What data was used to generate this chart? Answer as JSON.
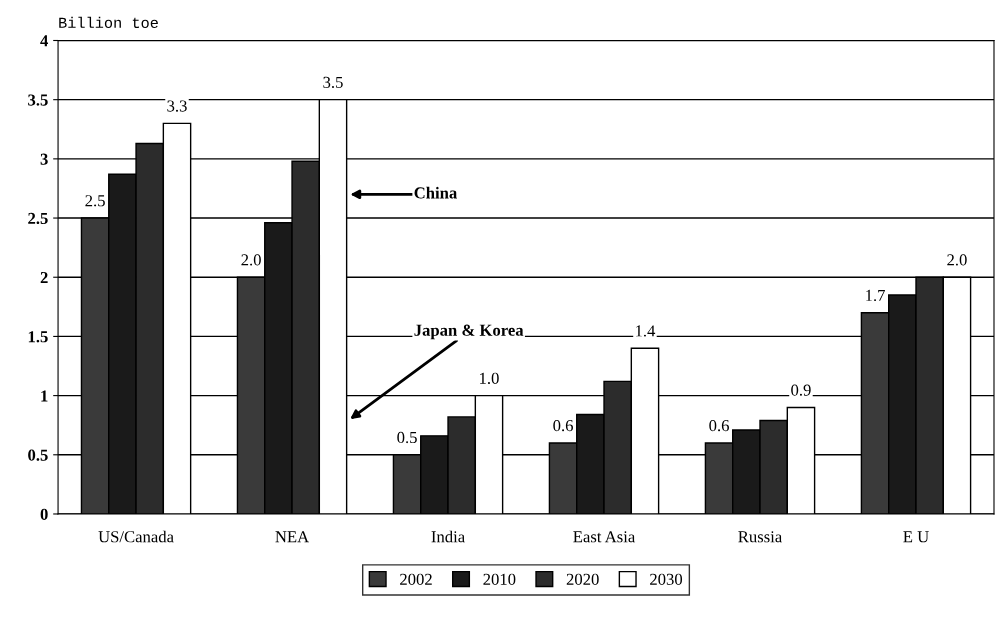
{
  "chart_data": {
    "type": "bar",
    "ylabel": "Billion toe",
    "categories": [
      "US/Canada",
      "NEA",
      "India",
      "East Asia",
      "Russia",
      "E U"
    ],
    "series": [
      {
        "name": "2002",
        "color": "#3a3a3a",
        "values": [
          2.5,
          2.0,
          0.5,
          0.6,
          0.6,
          1.7
        ],
        "value_labels": [
          "2.5",
          "2.0",
          "0.5",
          "0.6",
          "0.6",
          "1.7"
        ]
      },
      {
        "name": "2010",
        "color": "#1a1a1a",
        "values": [
          2.87,
          2.46,
          0.66,
          0.84,
          0.71,
          1.85
        ],
        "value_labels": [
          null,
          null,
          null,
          null,
          null,
          null
        ]
      },
      {
        "name": "2020",
        "color": "#2c2c2c",
        "values": [
          3.13,
          2.98,
          0.82,
          1.12,
          0.79,
          2.0
        ],
        "value_labels": [
          null,
          null,
          null,
          null,
          null,
          null
        ]
      },
      {
        "name": "2030",
        "color": "#ffffff",
        "values": [
          3.3,
          3.5,
          1.0,
          1.4,
          0.9,
          2.0
        ],
        "value_labels": [
          "3.3",
          "3.5",
          "1.0",
          "1.4",
          "0.9",
          "2.0"
        ]
      }
    ],
    "ylim": [
      0,
      4
    ],
    "yticks": [
      0,
      0.5,
      1,
      1.5,
      2,
      2.5,
      3,
      3.5,
      4
    ],
    "grid": "y",
    "legend": "bottom",
    "annotations": [
      "China",
      "Japan & Korea"
    ]
  }
}
